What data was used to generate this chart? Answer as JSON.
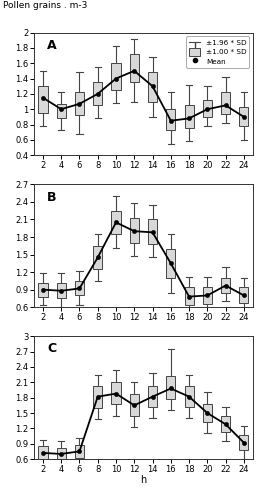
{
  "hours": [
    2,
    4,
    6,
    8,
    10,
    12,
    14,
    16,
    18,
    20,
    22,
    24
  ],
  "A": {
    "mean": [
      1.15,
      1.0,
      1.07,
      1.2,
      1.4,
      1.5,
      1.3,
      0.85,
      0.88,
      1.0,
      1.05,
      0.9
    ],
    "sd1_lo": [
      0.95,
      0.88,
      0.92,
      1.05,
      1.25,
      1.35,
      1.1,
      0.73,
      0.75,
      0.9,
      0.94,
      0.78
    ],
    "sd1_hi": [
      1.3,
      1.07,
      1.22,
      1.35,
      1.6,
      1.72,
      1.48,
      1.0,
      1.05,
      1.12,
      1.22,
      1.03
    ],
    "sd2_lo": [
      0.78,
      0.73,
      0.68,
      0.88,
      1.08,
      1.1,
      0.9,
      0.55,
      0.58,
      0.78,
      0.82,
      0.6
    ],
    "sd2_hi": [
      1.5,
      1.22,
      1.48,
      1.55,
      1.82,
      1.92,
      1.68,
      1.22,
      1.32,
      1.3,
      1.42,
      1.22
    ],
    "ylim": [
      0.4,
      2.0
    ],
    "yticks": [
      0.4,
      0.6,
      0.8,
      1.0,
      1.2,
      1.4,
      1.6,
      1.8,
      2.0
    ],
    "label": "A"
  },
  "B": {
    "mean": [
      0.9,
      0.88,
      0.92,
      1.45,
      2.05,
      1.9,
      1.88,
      1.35,
      0.78,
      0.8,
      0.97,
      0.8
    ],
    "sd1_lo": [
      0.78,
      0.75,
      0.8,
      1.25,
      1.85,
      1.7,
      1.68,
      1.1,
      0.63,
      0.66,
      0.84,
      0.67
    ],
    "sd1_hi": [
      1.02,
      1.02,
      1.05,
      1.65,
      2.25,
      2.12,
      2.1,
      1.6,
      0.94,
      0.94,
      1.1,
      0.95
    ],
    "sd2_lo": [
      0.63,
      0.6,
      0.63,
      1.05,
      1.62,
      1.48,
      1.45,
      0.85,
      0.47,
      0.5,
      0.7,
      0.5
    ],
    "sd2_hi": [
      1.18,
      1.18,
      1.22,
      1.85,
      2.5,
      2.38,
      2.35,
      1.85,
      1.12,
      1.12,
      1.28,
      1.1
    ],
    "ylim": [
      0.6,
      2.7
    ],
    "yticks": [
      0.6,
      0.9,
      1.2,
      1.5,
      1.8,
      2.1,
      2.4,
      2.7
    ],
    "label": "B"
  },
  "C": {
    "mean": [
      0.72,
      0.7,
      0.75,
      1.82,
      1.88,
      1.65,
      1.82,
      1.98,
      1.82,
      1.5,
      1.28,
      0.92
    ],
    "sd1_lo": [
      0.6,
      0.58,
      0.63,
      1.6,
      1.68,
      1.45,
      1.62,
      1.78,
      1.62,
      1.32,
      1.12,
      0.78
    ],
    "sd1_hi": [
      0.85,
      0.82,
      0.88,
      2.02,
      2.1,
      1.88,
      2.02,
      2.22,
      2.02,
      1.68,
      1.45,
      1.08
    ],
    "sd2_lo": [
      0.47,
      0.45,
      0.48,
      1.38,
      1.45,
      1.22,
      1.4,
      1.55,
      1.4,
      1.1,
      0.95,
      0.6
    ],
    "sd2_hi": [
      0.98,
      0.95,
      1.02,
      2.25,
      2.35,
      2.1,
      2.28,
      2.75,
      2.25,
      1.92,
      1.62,
      1.25
    ],
    "ylim": [
      0.6,
      3.0
    ],
    "yticks": [
      0.6,
      0.9,
      1.2,
      1.5,
      1.8,
      2.1,
      2.4,
      2.7,
      3.0
    ],
    "label": "C"
  },
  "title_y": "Pollen grains . m-3",
  "xlabel": "h",
  "box_color": "#d8d8d8",
  "box_edge_color": "#444444",
  "mean_line_color": "#000000",
  "whisker_color": "#444444",
  "bw": 0.5
}
